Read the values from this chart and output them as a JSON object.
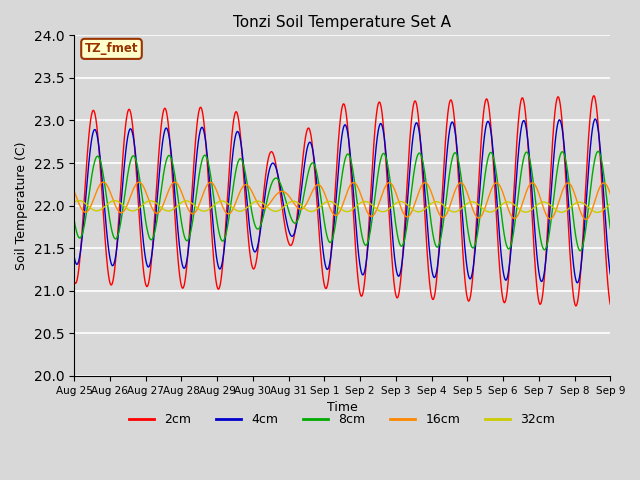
{
  "title": "Tonzi Soil Temperature Set A",
  "xlabel": "Time",
  "ylabel": "Soil Temperature (C)",
  "ylim": [
    20.0,
    24.0
  ],
  "yticks": [
    20.0,
    20.5,
    21.0,
    21.5,
    22.0,
    22.5,
    23.0,
    23.5,
    24.0
  ],
  "background_color": "#d8d8d8",
  "plot_bg_color": "#d8d8d8",
  "legend_label": "TZ_fmet",
  "legend_bg": "#ffffcc",
  "legend_border": "#993300",
  "series": [
    {
      "label": "2cm",
      "color": "#ff0000"
    },
    {
      "label": "4cm",
      "color": "#0000cc"
    },
    {
      "label": "8cm",
      "color": "#00aa00"
    },
    {
      "label": "16cm",
      "color": "#ff8800"
    },
    {
      "label": "32cm",
      "color": "#cccc00"
    }
  ],
  "xtick_labels": [
    "Aug 25",
    "Aug 26",
    "Aug 27",
    "Aug 28",
    "Aug 29",
    "Aug 30",
    "Aug 31",
    "Sep 1",
    "Sep 2",
    "Sep 3",
    "Sep 4",
    "Sep 5",
    "Sep 6",
    "Sep 7",
    "Sep 8",
    "Sep 9"
  ],
  "figsize": [
    6.4,
    4.8
  ],
  "dpi": 100
}
